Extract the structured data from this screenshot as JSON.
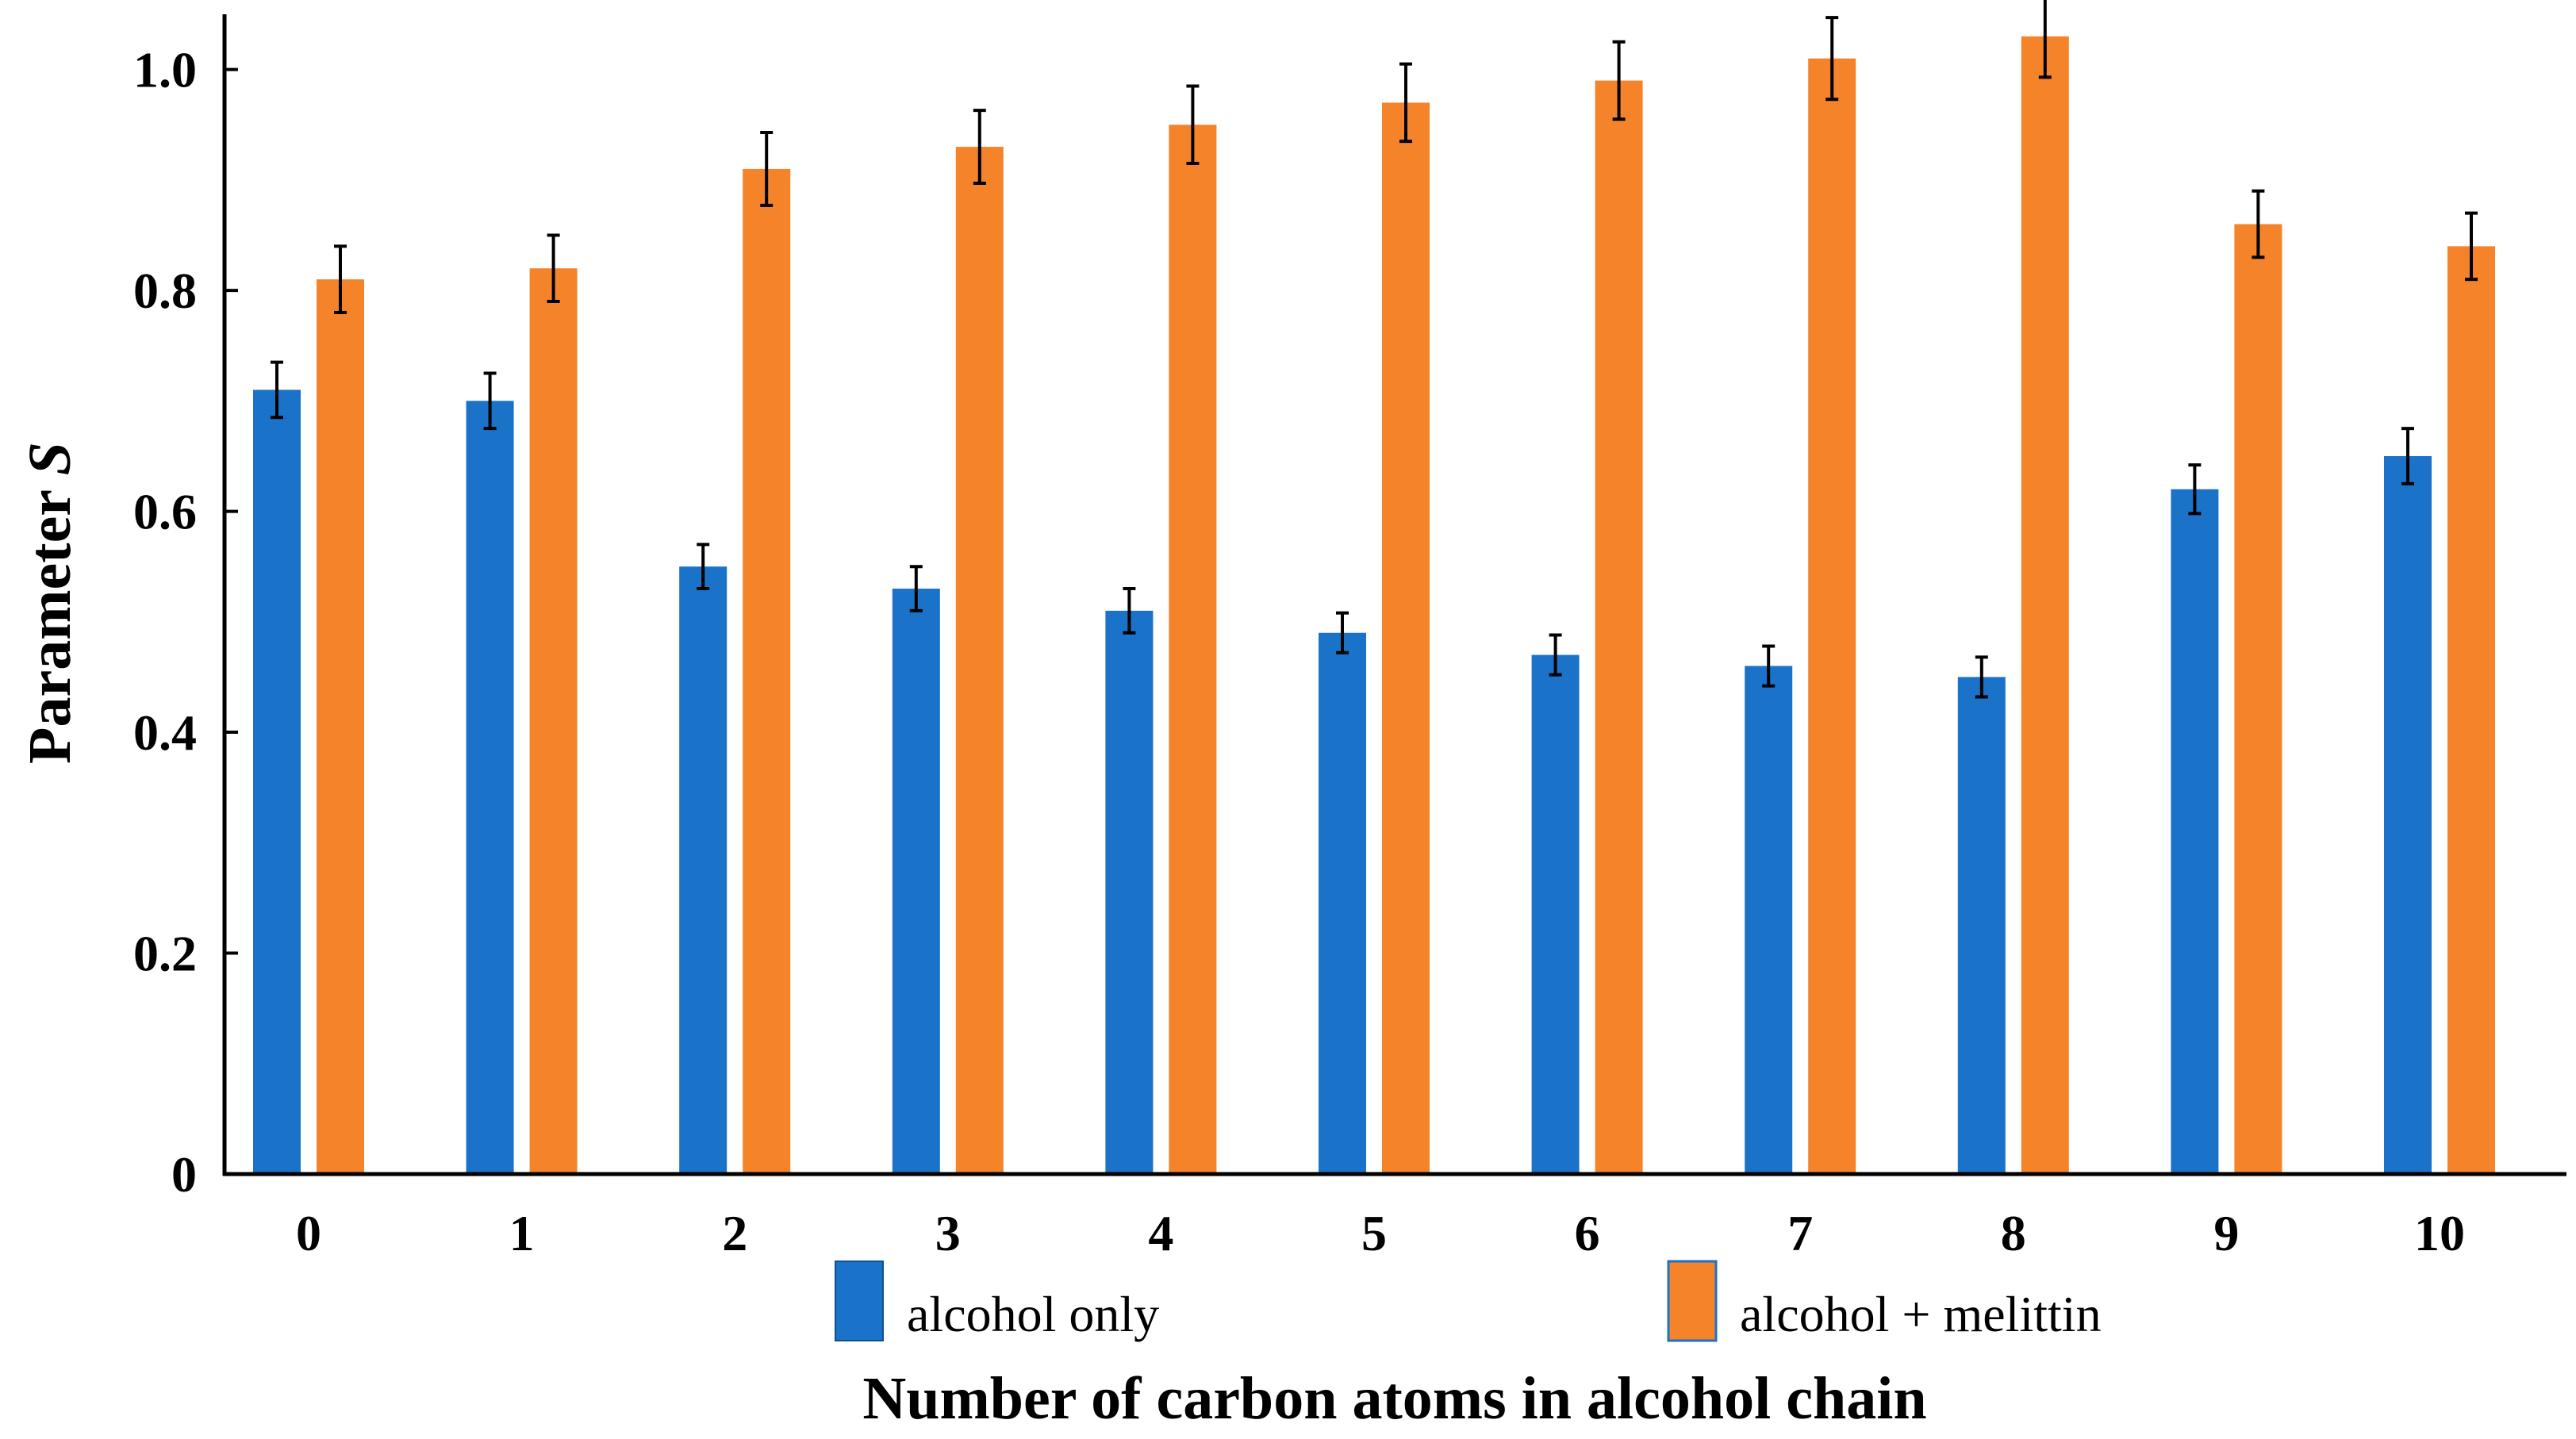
{
  "chart_data": {
    "type": "bar",
    "title": "",
    "xlabel": "Number of carbon atoms in alcohol chain",
    "ylabel_main": "Parameter ",
    "ylabel_italic": "S",
    "categories": [
      "0",
      "1",
      "2",
      "3",
      "4",
      "5",
      "6",
      "7",
      "8",
      "9",
      "10"
    ],
    "ylim": [
      0,
      1.05
    ],
    "yticks": [
      0,
      0.2,
      0.4,
      0.6,
      0.8,
      1.0
    ],
    "ytick_labels": [
      "0",
      "0.2",
      "0.4",
      "0.6",
      "0.8",
      "1.0"
    ],
    "grid": false,
    "legend_position": "bottom",
    "series": [
      {
        "name": "alcohol only",
        "color": "#1a72c9",
        "values": [
          0.71,
          0.7,
          0.55,
          0.53,
          0.51,
          0.49,
          0.47,
          0.46,
          0.45,
          0.62,
          0.65
        ],
        "errors": [
          0.025,
          0.025,
          0.02,
          0.02,
          0.02,
          0.018,
          0.018,
          0.018,
          0.018,
          0.022,
          0.025
        ]
      },
      {
        "name": "alcohol + melittin",
        "color": "#f5832a",
        "values": [
          0.81,
          0.82,
          0.91,
          0.93,
          0.95,
          0.97,
          0.99,
          1.01,
          1.03,
          0.86,
          0.84
        ],
        "errors": [
          0.03,
          0.03,
          0.033,
          0.033,
          0.035,
          0.035,
          0.035,
          0.037,
          0.037,
          0.03,
          0.03
        ]
      }
    ]
  }
}
